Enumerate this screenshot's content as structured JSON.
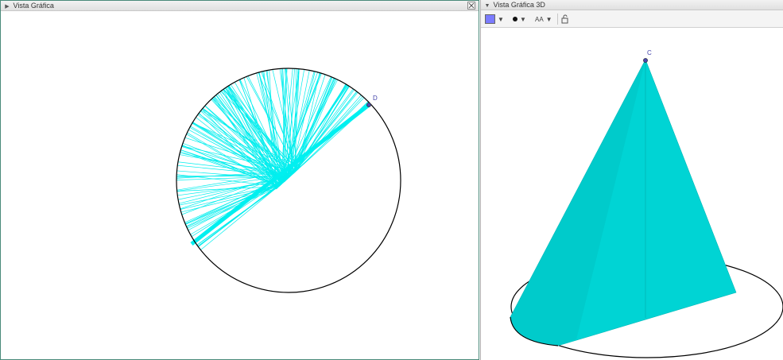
{
  "view2d": {
    "title": "Vista Gráfica",
    "point_label": "D"
  },
  "view3d": {
    "title": "Vista Gráfica 3D",
    "point_label": "C",
    "text_style_label": "AA"
  },
  "colors": {
    "fill": "#00e0e0",
    "sector_lines": "#00f0f0",
    "cone": "#00d4d4",
    "point": "#4a4ab0",
    "circle": "#000000"
  },
  "icons": {
    "close": "close-icon",
    "color": "color-swatch-icon",
    "point_style": "point-style-icon",
    "text_style": "text-style-icon",
    "lock": "lock-icon"
  }
}
